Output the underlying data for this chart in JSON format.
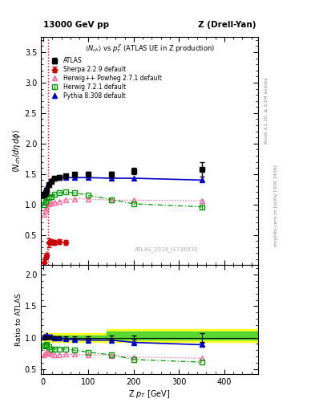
{
  "title_left": "13000 GeV pp",
  "title_right": "Z (Drell-Yan)",
  "right_label": "Rivet 3.1.10, ≥ 3.1M events",
  "arxiv_label": "mcplots.cern.ch [arXiv:1306.3436]",
  "watermark": "ATLAS_2019_I1736531",
  "ylim_main": [
    0,
    3.75
  ],
  "ylim_ratio": [
    0.42,
    2.15
  ],
  "yticks_main": [
    0.5,
    1.0,
    1.5,
    2.0,
    2.5,
    3.0,
    3.5
  ],
  "yticks_ratio": [
    0.5,
    1.0,
    1.5,
    2.0
  ],
  "xlim": [
    -5,
    475
  ],
  "xticks": [
    0,
    100,
    200,
    300,
    400
  ],
  "vline_x": 10,
  "atlas_x": [
    2,
    5,
    8,
    12,
    18,
    25,
    35,
    50,
    70,
    100,
    150,
    200,
    350
  ],
  "atlas_y": [
    1.16,
    1.19,
    1.23,
    1.32,
    1.38,
    1.43,
    1.45,
    1.47,
    1.49,
    1.5,
    1.49,
    1.55,
    1.58
  ],
  "atlas_yerr": [
    0.04,
    0.03,
    0.03,
    0.03,
    0.03,
    0.03,
    0.03,
    0.03,
    0.03,
    0.03,
    0.04,
    0.05,
    0.12
  ],
  "herwig_x": [
    2,
    5,
    8,
    12,
    18,
    25,
    35,
    50,
    70,
    100,
    150,
    200,
    350
  ],
  "herwig_y": [
    0.84,
    0.9,
    0.95,
    1.01,
    1.02,
    1.03,
    1.05,
    1.08,
    1.09,
    1.09,
    1.07,
    1.07,
    1.06
  ],
  "herwig_yerr": [
    0.01,
    0.01,
    0.01,
    0.01,
    0.01,
    0.01,
    0.01,
    0.01,
    0.01,
    0.01,
    0.01,
    0.01,
    0.02
  ],
  "herwig72_x": [
    2,
    5,
    8,
    12,
    18,
    25,
    35,
    50,
    70,
    100,
    150,
    200,
    350
  ],
  "herwig72_y": [
    1.0,
    1.05,
    1.1,
    1.12,
    1.13,
    1.17,
    1.19,
    1.2,
    1.19,
    1.15,
    1.08,
    1.01,
    0.96
  ],
  "herwig72_yerr": [
    0.01,
    0.01,
    0.01,
    0.01,
    0.01,
    0.01,
    0.01,
    0.01,
    0.01,
    0.01,
    0.01,
    0.01,
    0.04
  ],
  "pythia_x": [
    2,
    5,
    8,
    12,
    18,
    25,
    35,
    50,
    70,
    100,
    150,
    200,
    350
  ],
  "pythia_y": [
    1.18,
    1.22,
    1.28,
    1.35,
    1.4,
    1.43,
    1.44,
    1.44,
    1.44,
    1.44,
    1.43,
    1.43,
    1.4
  ],
  "pythia_yerr": [
    0.01,
    0.01,
    0.01,
    0.01,
    0.01,
    0.01,
    0.01,
    0.01,
    0.01,
    0.01,
    0.01,
    0.01,
    0.03
  ],
  "sherpa_x": [
    2,
    5,
    8,
    12,
    18,
    25,
    35,
    50
  ],
  "sherpa_y": [
    0.05,
    0.12,
    0.17,
    0.37,
    0.38,
    0.38,
    0.39,
    0.37
  ],
  "sherpa_yerr": [
    0.01,
    0.02,
    0.03,
    0.07,
    0.05,
    0.04,
    0.04,
    0.04
  ],
  "herwig_ratio_y": [
    0.725,
    0.756,
    0.772,
    0.765,
    0.739,
    0.72,
    0.724,
    0.735,
    0.732,
    0.727,
    0.718,
    0.69,
    0.671
  ],
  "herwig72_ratio_y": [
    0.862,
    0.882,
    0.894,
    0.848,
    0.819,
    0.818,
    0.821,
    0.816,
    0.799,
    0.767,
    0.725,
    0.652,
    0.608
  ],
  "pythia_ratio_y": [
    1.017,
    1.025,
    1.041,
    1.023,
    1.014,
    1.0,
    0.993,
    0.98,
    0.966,
    0.96,
    0.96,
    0.923,
    0.886
  ],
  "pythia_ratio_yerr": [
    0.01,
    0.01,
    0.01,
    0.01,
    0.01,
    0.01,
    0.01,
    0.01,
    0.01,
    0.01,
    0.01,
    0.01,
    0.025
  ],
  "color_atlas": "#000000",
  "color_herwig": "#ff6699",
  "color_herwig72": "#009900",
  "color_pythia": "#0000cc",
  "color_sherpa": "#cc0000",
  "color_vline": "#ff0000"
}
